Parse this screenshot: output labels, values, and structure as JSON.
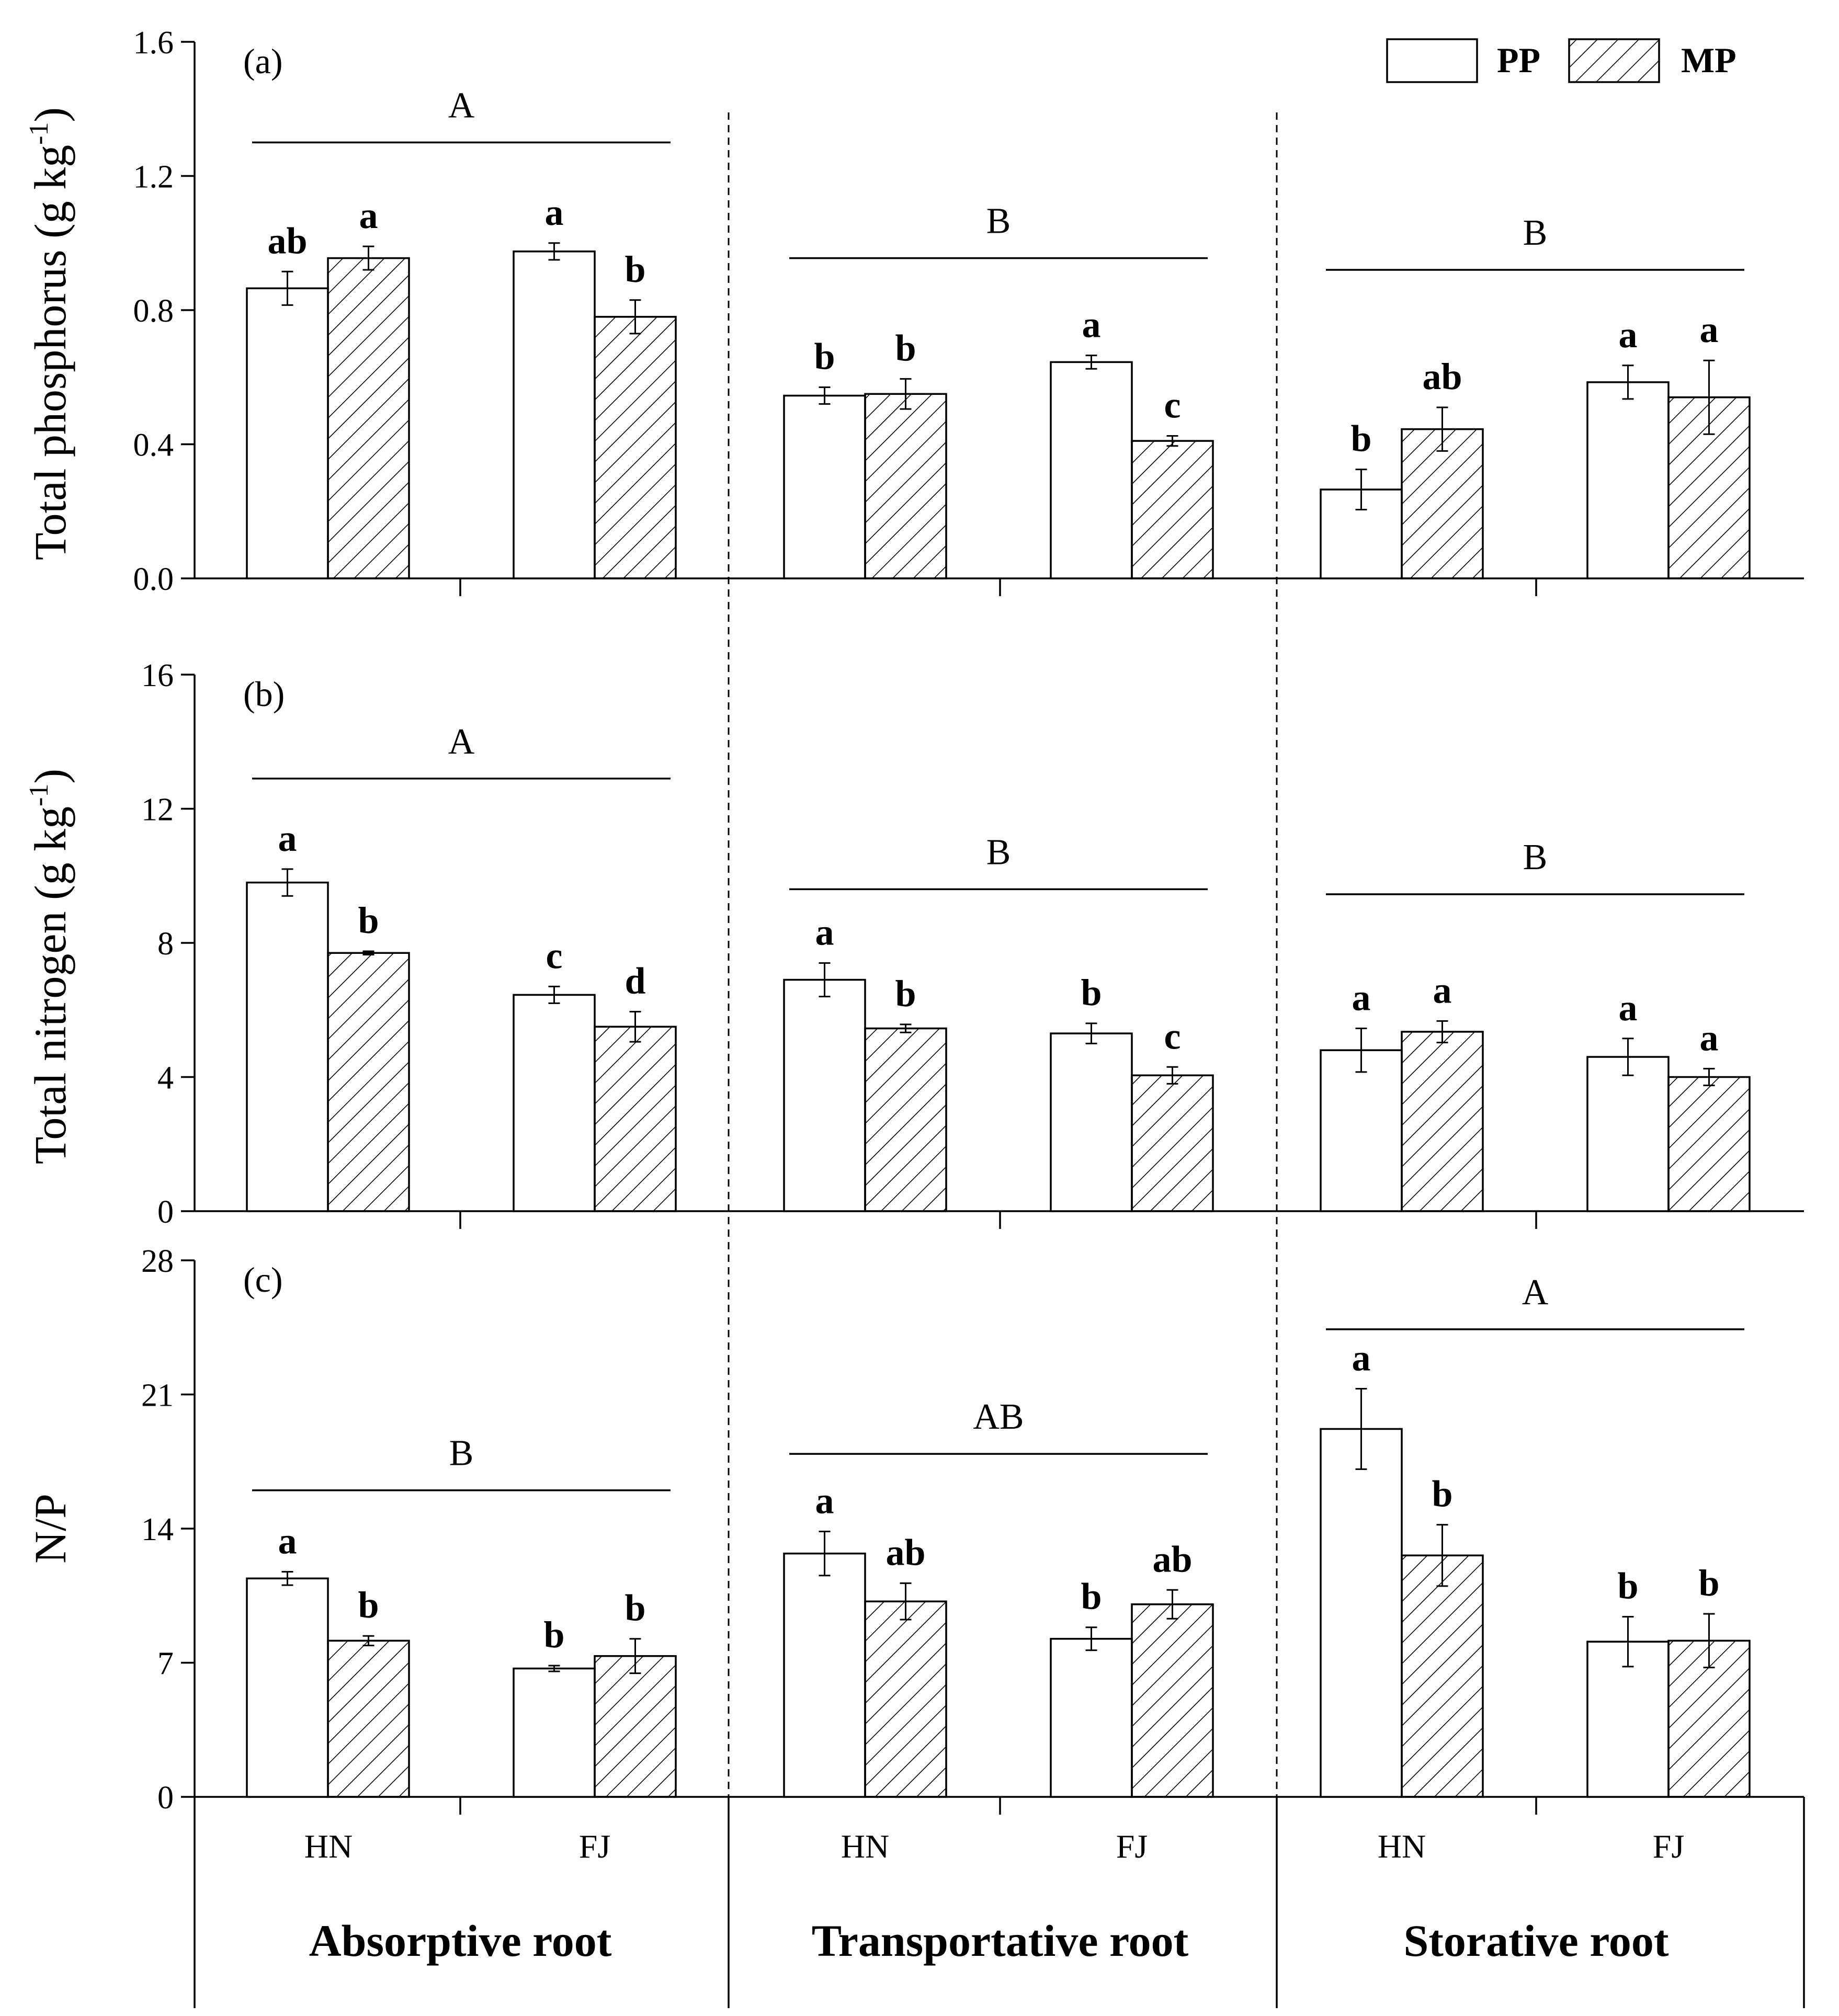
{
  "legend": [
    {
      "key": "PP",
      "label": "PP",
      "pattern": "plain"
    },
    {
      "key": "MP",
      "label": "MP",
      "pattern": "hatched"
    }
  ],
  "root_types": [
    "Absorptive root",
    "Transportative root",
    "Storative root"
  ],
  "sites": [
    "HN",
    "FJ"
  ],
  "chart_data": [
    {
      "type": "bar",
      "panel": "(a)",
      "ylabel_main": "Total phosphorus (g kg",
      "ylabel_sup": "-1",
      "ylabel_close": ")",
      "ylim": [
        0,
        1.6
      ],
      "yticks": [
        "0.0",
        "0.4",
        "0.8",
        "1.2",
        "1.6"
      ],
      "ytick_values": [
        0,
        0.4,
        0.8,
        1.2,
        1.6
      ],
      "groups": [
        {
          "root": "Absorptive root",
          "letter": "A",
          "letter_level": 1.3,
          "bars": [
            {
              "site": "HN",
              "series": "PP",
              "value": 0.865,
              "err": 0.05,
              "label": "ab"
            },
            {
              "site": "HN",
              "series": "MP",
              "value": 0.955,
              "err": 0.035,
              "label": "a"
            },
            {
              "site": "FJ",
              "series": "PP",
              "value": 0.975,
              "err": 0.025,
              "label": "a"
            },
            {
              "site": "FJ",
              "series": "MP",
              "value": 0.78,
              "err": 0.05,
              "label": "b"
            }
          ]
        },
        {
          "root": "Transportative root",
          "letter": "B",
          "letter_level": 0.955,
          "bars": [
            {
              "site": "HN",
              "series": "PP",
              "value": 0.545,
              "err": 0.025,
              "label": "b"
            },
            {
              "site": "HN",
              "series": "MP",
              "value": 0.55,
              "err": 0.045,
              "label": "b"
            },
            {
              "site": "FJ",
              "series": "PP",
              "value": 0.645,
              "err": 0.02,
              "label": "a"
            },
            {
              "site": "FJ",
              "series": "MP",
              "value": 0.41,
              "err": 0.015,
              "label": "c"
            }
          ]
        },
        {
          "root": "Storative root",
          "letter": "B",
          "letter_level": 0.92,
          "bars": [
            {
              "site": "HN",
              "series": "PP",
              "value": 0.265,
              "err": 0.06,
              "label": "b"
            },
            {
              "site": "HN",
              "series": "MP",
              "value": 0.445,
              "err": 0.065,
              "label": "ab"
            },
            {
              "site": "FJ",
              "series": "PP",
              "value": 0.585,
              "err": 0.05,
              "label": "a"
            },
            {
              "site": "FJ",
              "series": "MP",
              "value": 0.54,
              "err": 0.11,
              "label": "a"
            }
          ]
        }
      ]
    },
    {
      "type": "bar",
      "panel": "(b)",
      "ylabel_main": "Total nitrogen (g kg",
      "ylabel_sup": "-1",
      "ylabel_close": ")",
      "ylim": [
        0,
        16
      ],
      "yticks": [
        "0",
        "4",
        "8",
        "12",
        "16"
      ],
      "ytick_values": [
        0,
        4,
        8,
        12,
        16
      ],
      "groups": [
        {
          "root": "Absorptive root",
          "letter": "A",
          "letter_level": 12.9,
          "bars": [
            {
              "site": "HN",
              "series": "PP",
              "value": 9.8,
              "err": 0.4,
              "label": "a"
            },
            {
              "site": "HN",
              "series": "MP",
              "value": 7.7,
              "err": 0.05,
              "label": "b"
            },
            {
              "site": "FJ",
              "series": "PP",
              "value": 6.45,
              "err": 0.25,
              "label": "c"
            },
            {
              "site": "FJ",
              "series": "MP",
              "value": 5.5,
              "err": 0.45,
              "label": "d"
            }
          ]
        },
        {
          "root": "Transportative root",
          "letter": "B",
          "letter_level": 9.6,
          "bars": [
            {
              "site": "HN",
              "series": "PP",
              "value": 6.9,
              "err": 0.5,
              "label": "a"
            },
            {
              "site": "HN",
              "series": "MP",
              "value": 5.45,
              "err": 0.12,
              "label": "b"
            },
            {
              "site": "FJ",
              "series": "PP",
              "value": 5.3,
              "err": 0.3,
              "label": "b"
            },
            {
              "site": "FJ",
              "series": "MP",
              "value": 4.05,
              "err": 0.25,
              "label": "c"
            }
          ]
        },
        {
          "root": "Storative root",
          "letter": "B",
          "letter_level": 9.45,
          "bars": [
            {
              "site": "HN",
              "series": "PP",
              "value": 4.8,
              "err": 0.65,
              "label": "a"
            },
            {
              "site": "HN",
              "series": "MP",
              "value": 5.35,
              "err": 0.32,
              "label": "a"
            },
            {
              "site": "FJ",
              "series": "PP",
              "value": 4.6,
              "err": 0.55,
              "label": "a"
            },
            {
              "site": "FJ",
              "series": "MP",
              "value": 4.0,
              "err": 0.25,
              "label": "a"
            }
          ]
        }
      ]
    },
    {
      "type": "bar",
      "panel": "(c)",
      "ylabel_main": "N/P",
      "ylabel_sup": "",
      "ylabel_close": "",
      "ylim": [
        0,
        28
      ],
      "yticks": [
        "0",
        "7",
        "14",
        "21",
        "28"
      ],
      "ytick_values": [
        0,
        7,
        14,
        21,
        28
      ],
      "groups": [
        {
          "root": "Absorptive root",
          "letter": "B",
          "letter_level": 16.0,
          "bars": [
            {
              "site": "HN",
              "series": "PP",
              "value": 11.4,
              "err": 0.35,
              "label": "a"
            },
            {
              "site": "HN",
              "series": "MP",
              "value": 8.15,
              "err": 0.25,
              "label": "b"
            },
            {
              "site": "FJ",
              "series": "PP",
              "value": 6.7,
              "err": 0.15,
              "label": "b"
            },
            {
              "site": "FJ",
              "series": "MP",
              "value": 7.35,
              "err": 0.9,
              "label": "b"
            }
          ]
        },
        {
          "root": "Transportative root",
          "letter": "AB",
          "letter_level": 17.9,
          "bars": [
            {
              "site": "HN",
              "series": "PP",
              "value": 12.7,
              "err": 1.15,
              "label": "a"
            },
            {
              "site": "HN",
              "series": "MP",
              "value": 10.2,
              "err": 0.95,
              "label": "ab"
            },
            {
              "site": "FJ",
              "series": "PP",
              "value": 8.25,
              "err": 0.6,
              "label": "b"
            },
            {
              "site": "FJ",
              "series": "MP",
              "value": 10.05,
              "err": 0.75,
              "label": "ab"
            }
          ]
        },
        {
          "root": "Storative root",
          "letter": "A",
          "letter_level": 24.4,
          "bars": [
            {
              "site": "HN",
              "series": "PP",
              "value": 19.2,
              "err": 2.1,
              "label": "a"
            },
            {
              "site": "HN",
              "series": "MP",
              "value": 12.6,
              "err": 1.6,
              "label": "b"
            },
            {
              "site": "FJ",
              "series": "PP",
              "value": 8.1,
              "err": 1.3,
              "label": "b"
            },
            {
              "site": "FJ",
              "series": "MP",
              "value": 8.15,
              "err": 1.4,
              "label": "b"
            }
          ]
        }
      ]
    }
  ]
}
